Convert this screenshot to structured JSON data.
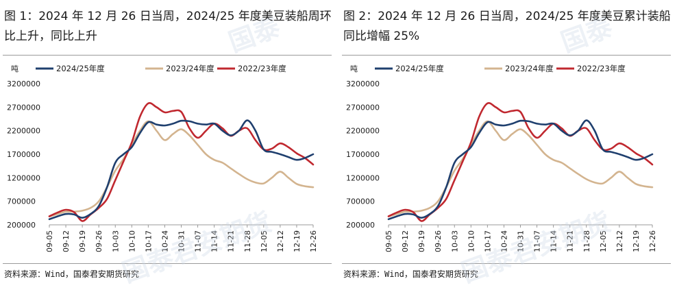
{
  "watermark": "国泰君安期货",
  "panels": [
    {
      "title": "图 1：2024 年 12 月 26 日当周，2024/25 年度美豆装船周环比上升，同比上升",
      "source": "资料来源：Wind，国泰君安期货研究"
    },
    {
      "title": "图 2：2024 年 12 月 26 日当周，2024/25 年度美豆累计装船同比增幅 25%",
      "source": "资料来源：Wind，国泰君安期货研究"
    }
  ],
  "colors": {
    "s2425": "#1f3f6e",
    "s2324": "#d3b48f",
    "s2223": "#c0282f",
    "axis": "#999999"
  },
  "chart_data": [
    {
      "type": "line",
      "ylabel": "吨",
      "ylim": [
        200000,
        3200000
      ],
      "yticks": [
        200000,
        700000,
        1200000,
        1700000,
        2200000,
        2700000,
        3200000
      ],
      "ytick_labels": [
        "200000",
        "700000",
        "1200000",
        "1700000",
        "2200000",
        "2700000",
        "3200000"
      ],
      "legend_position": "top",
      "grid": false,
      "x": [
        "09-05",
        "09-08",
        "09-12",
        "09-15",
        "09-19",
        "09-22",
        "09-26",
        "09-29",
        "10-03",
        "10-06",
        "10-10",
        "10-13",
        "10-17",
        "10-20",
        "10-24",
        "10-27",
        "10-31",
        "11-03",
        "11-07",
        "11-10",
        "11-14",
        "11-17",
        "11-21",
        "11-24",
        "11-28",
        "12-01",
        "12-05",
        "12-08",
        "12-12",
        "12-15",
        "12-19",
        "12-22",
        "12-26"
      ],
      "xtick_labels": [
        "09-05",
        "09-12",
        "09-19",
        "09-26",
        "10-03",
        "10-10",
        "10-17",
        "10-24",
        "10-31",
        "11-07",
        "11-14",
        "11-21",
        "11-28",
        "12-05",
        "12-12",
        "12-19",
        "12-26"
      ],
      "series": [
        {
          "name": "2024/25年度",
          "color": "#1f3f6e",
          "values": [
            320000,
            380000,
            430000,
            420000,
            350000,
            430000,
            600000,
            1000000,
            1520000,
            1700000,
            1850000,
            2150000,
            2380000,
            2330000,
            2310000,
            2350000,
            2410000,
            2400000,
            2350000,
            2330000,
            2350000,
            2200000,
            2100000,
            2200000,
            2420000,
            2200000,
            1800000,
            1750000,
            1700000,
            1640000,
            1580000,
            1620000,
            1700000
          ]
        },
        {
          "name": "2023/24年度",
          "color": "#d3b48f",
          "values": [
            380000,
            430000,
            480000,
            480000,
            500000,
            560000,
            700000,
            1000000,
            1350000,
            1600000,
            1900000,
            2200000,
            2400000,
            2200000,
            2000000,
            2130000,
            2230000,
            2100000,
            1900000,
            1700000,
            1580000,
            1520000,
            1400000,
            1280000,
            1170000,
            1100000,
            1080000,
            1200000,
            1330000,
            1200000,
            1070000,
            1020000,
            1000000
          ]
        },
        {
          "name": "2022/23年度",
          "color": "#c0282f",
          "values": [
            380000,
            460000,
            520000,
            470000,
            280000,
            420000,
            560000,
            750000,
            1150000,
            1550000,
            1950000,
            2500000,
            2780000,
            2700000,
            2590000,
            2620000,
            2600000,
            2250000,
            2050000,
            2200000,
            2350000,
            2250000,
            2090000,
            2200000,
            2250000,
            2000000,
            1800000,
            1820000,
            1930000,
            1850000,
            1720000,
            1620000,
            1480000
          ]
        }
      ]
    },
    {
      "type": "line",
      "ylabel": "吨",
      "ylim": [
        200000,
        3200000
      ],
      "yticks": [
        200000,
        700000,
        1200000,
        1700000,
        2200000,
        2700000,
        3200000
      ],
      "ytick_labels": [
        "200000",
        "700000",
        "1200000",
        "1700000",
        "2200000",
        "2700000",
        "3200000"
      ],
      "legend_position": "top",
      "grid": false,
      "x": [
        "09-05",
        "09-08",
        "09-12",
        "09-15",
        "09-19",
        "09-22",
        "09-26",
        "09-29",
        "10-03",
        "10-06",
        "10-10",
        "10-13",
        "10-17",
        "10-20",
        "10-24",
        "10-27",
        "10-31",
        "11-03",
        "11-07",
        "11-10",
        "11-14",
        "11-17",
        "11-21",
        "11-24",
        "11-28",
        "12-01",
        "12-05",
        "12-08",
        "12-12",
        "12-15",
        "12-19",
        "12-22",
        "12-26"
      ],
      "xtick_labels": [
        "09-05",
        "09-12",
        "09-19",
        "09-26",
        "10-03",
        "10-10",
        "10-17",
        "10-24",
        "10-31",
        "11-07",
        "11-14",
        "11-21",
        "11-28",
        "12-05",
        "12-12",
        "12-19",
        "12-26"
      ],
      "series": [
        {
          "name": "2024/25年度",
          "color": "#1f3f6e",
          "values": [
            320000,
            380000,
            430000,
            420000,
            350000,
            430000,
            600000,
            1000000,
            1520000,
            1700000,
            1850000,
            2150000,
            2380000,
            2330000,
            2310000,
            2350000,
            2410000,
            2400000,
            2350000,
            2330000,
            2350000,
            2200000,
            2100000,
            2200000,
            2420000,
            2200000,
            1800000,
            1750000,
            1700000,
            1640000,
            1580000,
            1620000,
            1700000
          ]
        },
        {
          "name": "2023/24年度",
          "color": "#d3b48f",
          "values": [
            380000,
            430000,
            480000,
            480000,
            500000,
            560000,
            700000,
            1000000,
            1350000,
            1600000,
            1900000,
            2200000,
            2400000,
            2200000,
            2000000,
            2130000,
            2230000,
            2100000,
            1900000,
            1700000,
            1580000,
            1520000,
            1400000,
            1280000,
            1170000,
            1100000,
            1080000,
            1200000,
            1330000,
            1200000,
            1070000,
            1020000,
            1000000
          ]
        },
        {
          "name": "2022/23年度",
          "color": "#c0282f",
          "values": [
            380000,
            460000,
            520000,
            470000,
            280000,
            420000,
            560000,
            750000,
            1150000,
            1550000,
            1950000,
            2500000,
            2780000,
            2700000,
            2590000,
            2620000,
            2600000,
            2250000,
            2050000,
            2200000,
            2350000,
            2250000,
            2090000,
            2200000,
            2250000,
            2000000,
            1800000,
            1820000,
            1930000,
            1850000,
            1720000,
            1620000,
            1480000
          ]
        }
      ]
    }
  ]
}
